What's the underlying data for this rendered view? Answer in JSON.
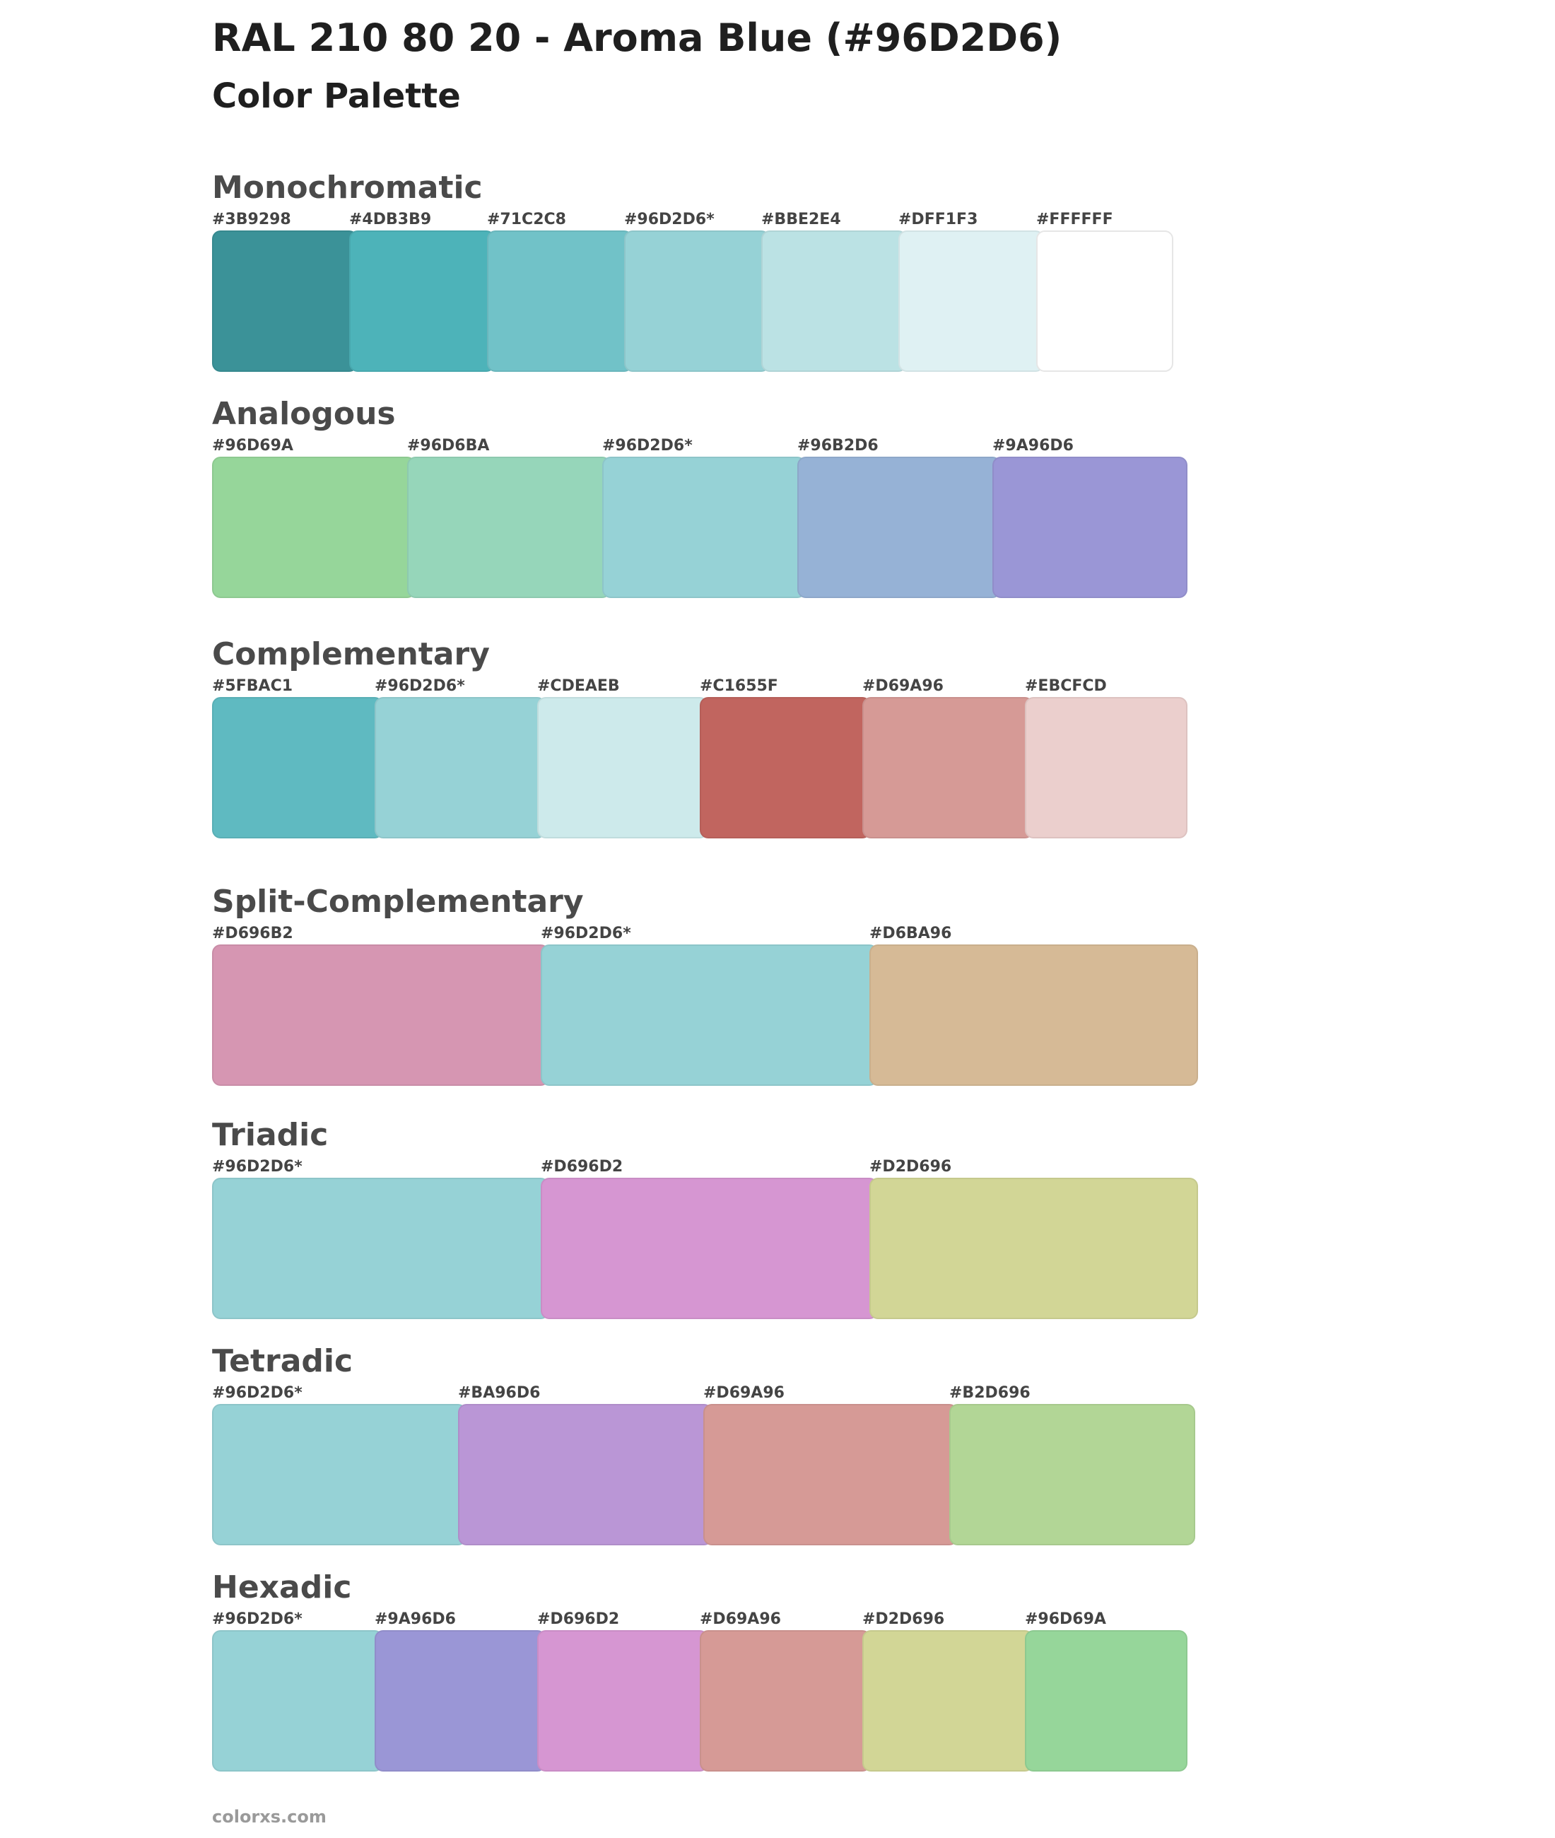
{
  "header": {
    "title": "RAL 210 80 20 - Aroma Blue (#96D2D6)",
    "subtitle": "Color Palette"
  },
  "palettes": [
    {
      "name": "Monochromatic",
      "swatches": [
        {
          "label": "#3B9298",
          "color": "#3B9298"
        },
        {
          "label": "#4DB3B9",
          "color": "#4DB3B9"
        },
        {
          "label": "#71C2C8",
          "color": "#71C2C8"
        },
        {
          "label": "#96D2D6*",
          "color": "#96D2D6"
        },
        {
          "label": "#BBE2E4",
          "color": "#BBE2E4"
        },
        {
          "label": "#DFF1F3",
          "color": "#DFF1F3"
        },
        {
          "label": "#FFFFFF",
          "color": "#FFFFFF"
        }
      ]
    },
    {
      "name": "Analogous",
      "swatches": [
        {
          "label": "#96D69A",
          "color": "#96D69A"
        },
        {
          "label": "#96D6BA",
          "color": "#96D6BA"
        },
        {
          "label": "#96D2D6*",
          "color": "#96D2D6"
        },
        {
          "label": "#96B2D6",
          "color": "#96B2D6"
        },
        {
          "label": "#9A96D6",
          "color": "#9A96D6"
        }
      ]
    },
    {
      "name": "Complementary",
      "swatches": [
        {
          "label": "#5FBAC1",
          "color": "#5FBAC1"
        },
        {
          "label": "#96D2D6*",
          "color": "#96D2D6"
        },
        {
          "label": "#CDEAEB",
          "color": "#CDEAEB"
        },
        {
          "label": "#C1655F",
          "color": "#C1655F"
        },
        {
          "label": "#D69A96",
          "color": "#D69A96"
        },
        {
          "label": "#EBCFCD",
          "color": "#EBCFCD"
        }
      ]
    },
    {
      "name": "Split-Complementary",
      "swatches": [
        {
          "label": "#D696B2",
          "color": "#D696B2"
        },
        {
          "label": "#96D2D6*",
          "color": "#96D2D6"
        },
        {
          "label": "#D6BA96",
          "color": "#D6BA96"
        }
      ]
    },
    {
      "name": "Triadic",
      "swatches": [
        {
          "label": "#96D2D6*",
          "color": "#96D2D6"
        },
        {
          "label": "#D696D2",
          "color": "#D696D2"
        },
        {
          "label": "#D2D696",
          "color": "#D2D696"
        }
      ]
    },
    {
      "name": "Tetradic",
      "swatches": [
        {
          "label": "#96D2D6*",
          "color": "#96D2D6"
        },
        {
          "label": "#BA96D6",
          "color": "#BA96D6"
        },
        {
          "label": "#D69A96",
          "color": "#D69A96"
        },
        {
          "label": "#B2D696",
          "color": "#B2D696"
        }
      ]
    },
    {
      "name": "Hexadic",
      "swatches": [
        {
          "label": "#96D2D6*",
          "color": "#96D2D6"
        },
        {
          "label": "#9A96D6",
          "color": "#9A96D6"
        },
        {
          "label": "#D696D2",
          "color": "#D696D2"
        },
        {
          "label": "#D69A96",
          "color": "#D69A96"
        },
        {
          "label": "#D2D696",
          "color": "#D2D696"
        },
        {
          "label": "#96D69A",
          "color": "#96D69A"
        }
      ]
    }
  ],
  "footer": {
    "site": "colorxs.com"
  }
}
